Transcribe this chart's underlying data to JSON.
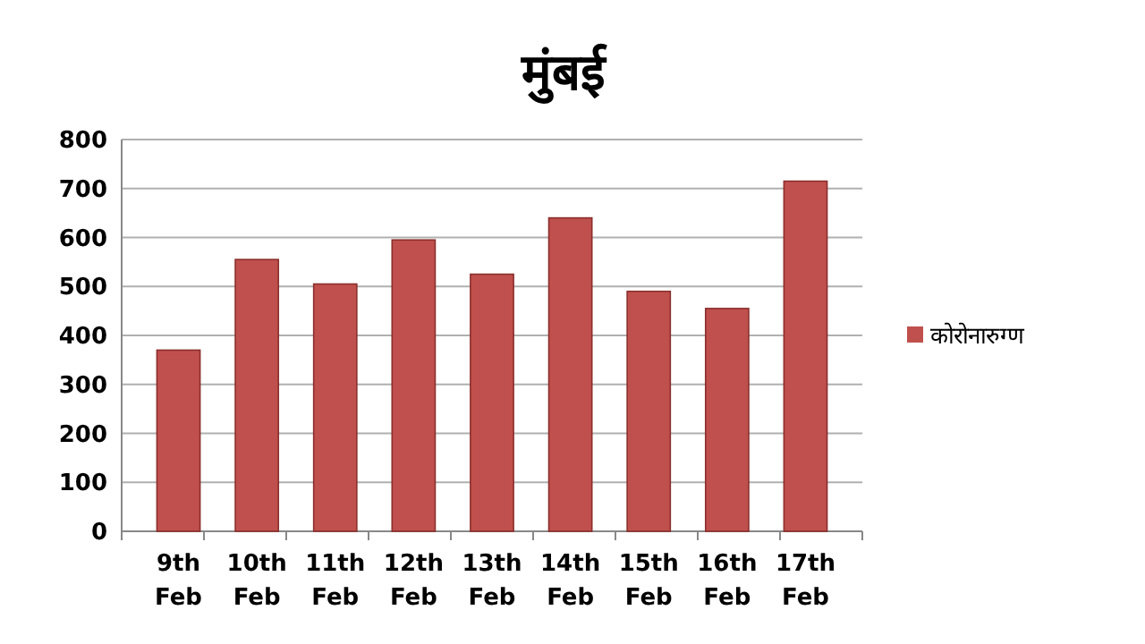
{
  "chart_data": {
    "type": "bar",
    "title": "मुंबई",
    "categories": [
      "9th Feb",
      "10th Feb",
      "11th Feb",
      "12th Feb",
      "13th Feb",
      "14th Feb",
      "15th Feb",
      "16th Feb",
      "17th Feb"
    ],
    "series": [
      {
        "name": "कोरोनारुग्ण",
        "color": "#c0504d",
        "values": [
          370,
          555,
          505,
          595,
          525,
          640,
          490,
          455,
          715
        ]
      }
    ],
    "ylim": [
      0,
      800
    ],
    "yticks": [
      0,
      100,
      200,
      300,
      400,
      500,
      600,
      700,
      800
    ],
    "grid": "y",
    "legend": "right"
  }
}
